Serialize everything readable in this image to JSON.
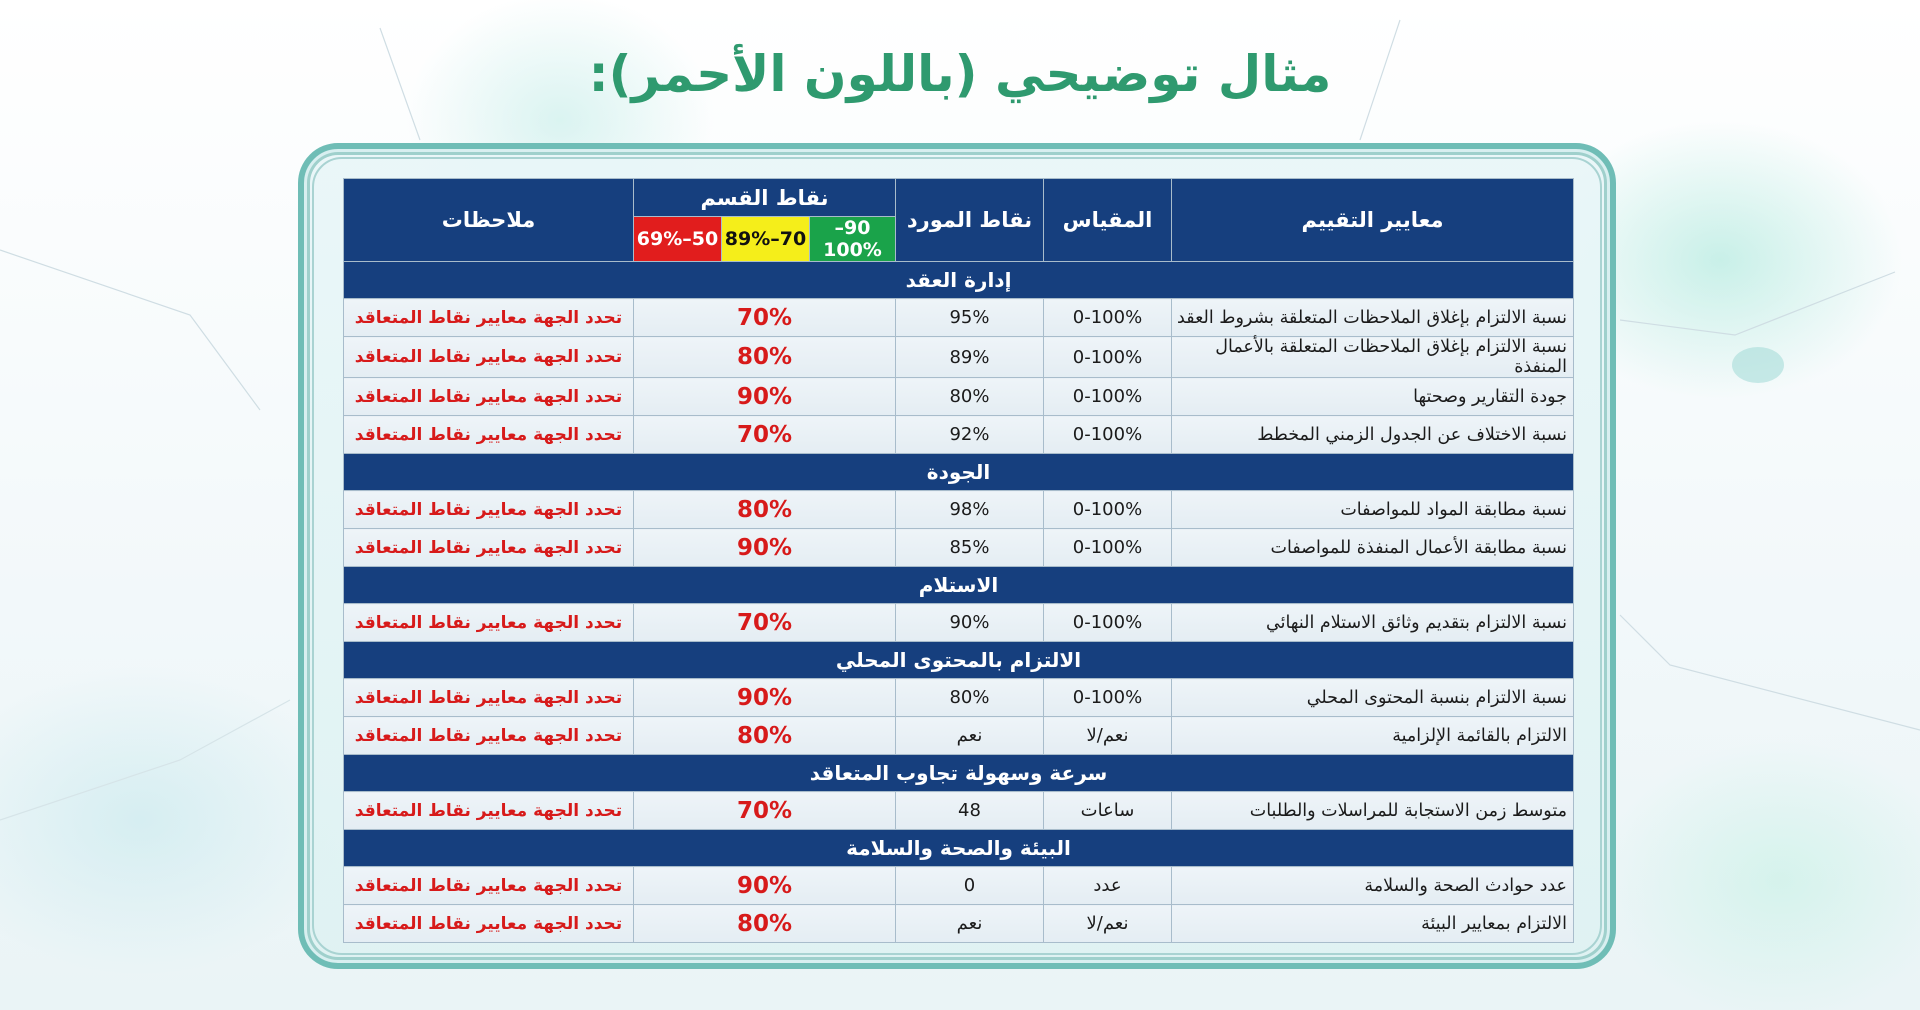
{
  "title": "مثال توضيحي (باللون الأحمر):",
  "table": {
    "headers": {
      "criteria": "معايير التقييم",
      "scale": "المقياس",
      "supplier_points": "نقاط المورد",
      "department_points": "نقاط القسم",
      "notes": "ملاحظات"
    },
    "legend": [
      {
        "label": "90–100%",
        "color": "#1aa34a"
      },
      {
        "label": "70–89%",
        "color": "#f5ee1a"
      },
      {
        "label": "50–69%",
        "color": "#e11d1d"
      }
    ],
    "sections": [
      {
        "title": "إدارة العقد",
        "rows": [
          {
            "criteria": "نسبة الالتزام بإغلاق الملاحظات المتعلقة بشروط العقد",
            "scale": "0-100%",
            "supplier": "95%",
            "department": "70%",
            "note": "تحدد الجهة معايير نقاط المتعاقد"
          },
          {
            "criteria": "نسبة الالتزام بإغلاق الملاحظات المتعلقة بالأعمال المنفذة",
            "scale": "0-100%",
            "supplier": "89%",
            "department": "80%",
            "note": "تحدد الجهة معايير نقاط المتعاقد"
          },
          {
            "criteria": "جودة التقارير وصحتها",
            "scale": "0-100%",
            "supplier": "80%",
            "department": "90%",
            "note": "تحدد الجهة معايير نقاط المتعاقد"
          },
          {
            "criteria": "نسبة الاختلاف عن الجدول الزمني المخطط",
            "scale": "0-100%",
            "supplier": "92%",
            "department": "70%",
            "note": "تحدد الجهة معايير نقاط المتعاقد"
          }
        ]
      },
      {
        "title": "الجودة",
        "rows": [
          {
            "criteria": "نسبة مطابقة المواد للمواصفات",
            "scale": "0-100%",
            "supplier": "98%",
            "department": "80%",
            "note": "تحدد الجهة معايير نقاط المتعاقد"
          },
          {
            "criteria": "نسبة مطابقة الأعمال المنفذة للمواصفات",
            "scale": "0-100%",
            "supplier": "85%",
            "department": "90%",
            "note": "تحدد الجهة معايير نقاط المتعاقد"
          }
        ]
      },
      {
        "title": "الاستلام",
        "rows": [
          {
            "criteria": "نسبة الالتزام بتقديم وثائق الاستلام النهائي",
            "scale": "0-100%",
            "supplier": "90%",
            "department": "70%",
            "note": "تحدد الجهة معايير نقاط المتعاقد"
          }
        ]
      },
      {
        "title": "الالتزام بالمحتوى المحلي",
        "rows": [
          {
            "criteria": "نسبة الالتزام بنسبة المحتوى المحلي",
            "scale": "0-100%",
            "supplier": "80%",
            "department": "90%",
            "note": "تحدد الجهة معايير نقاط المتعاقد"
          },
          {
            "criteria": "الالتزام بالقائمة الإلزامية",
            "scale": "نعم/لا",
            "supplier": "نعم",
            "department": "80%",
            "note": "تحدد الجهة معايير نقاط المتعاقد"
          }
        ]
      },
      {
        "title": "سرعة وسهولة تجاوب المتعاقد",
        "rows": [
          {
            "criteria": "متوسط زمن الاستجابة للمراسلات والطلبات",
            "scale": "ساعات",
            "supplier": "48",
            "department": "70%",
            "note": "تحدد الجهة معايير نقاط المتعاقد"
          }
        ]
      },
      {
        "title": "البيئة والصحة والسلامة",
        "rows": [
          {
            "criteria": "عدد حوادث الصحة والسلامة",
            "scale": "عدد",
            "supplier": "0",
            "department": "90%",
            "note": "تحدد الجهة معايير نقاط المتعاقد"
          },
          {
            "criteria": "الالتزام بمعايير البيئة",
            "scale": "نعم/لا",
            "supplier": "نعم",
            "department": "80%",
            "note": "تحدد الجهة معايير نقاط المتعاقد"
          }
        ]
      }
    ]
  },
  "colors": {
    "title": "#2f9a6f",
    "header_bg": "#163f7e",
    "highlight_red": "#d71a1a",
    "frame": "#6fbdb6"
  }
}
